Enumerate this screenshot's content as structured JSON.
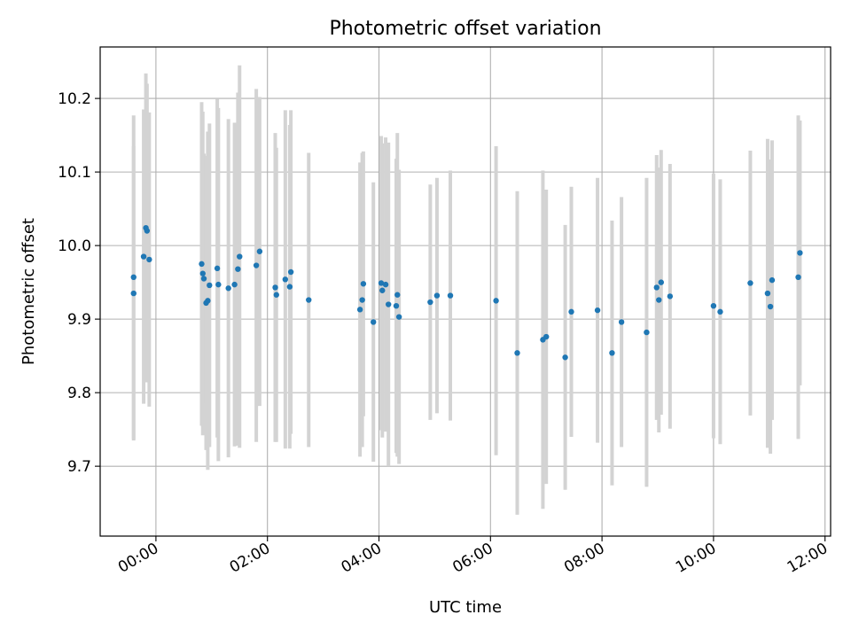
{
  "chart_data": {
    "type": "scatter",
    "title": "Photometric offset variation",
    "xlabel": "UTC time",
    "ylabel": "Photometric offset",
    "x_unit": "hours (UTC)",
    "xlim": [
      -1.0,
      12.1
    ],
    "ylim": [
      9.605,
      10.27
    ],
    "x_ticks": [
      {
        "value": 0,
        "label": "00:00"
      },
      {
        "value": 2,
        "label": "02:00"
      },
      {
        "value": 4,
        "label": "04:00"
      },
      {
        "value": 6,
        "label": "06:00"
      },
      {
        "value": 8,
        "label": "08:00"
      },
      {
        "value": 10,
        "label": "10:00"
      },
      {
        "value": 12,
        "label": "12:00"
      }
    ],
    "y_ticks": [
      {
        "value": 9.7,
        "label": "9.7"
      },
      {
        "value": 9.8,
        "label": "9.8"
      },
      {
        "value": 9.9,
        "label": "9.9"
      },
      {
        "value": 10.0,
        "label": "10.0"
      },
      {
        "value": 10.1,
        "label": "10.1"
      },
      {
        "value": 10.2,
        "label": "10.2"
      }
    ],
    "grid": true,
    "colors": {
      "points": "#1f77b4",
      "errorbars": "#d3d3d3",
      "grid": "#b0b0b0"
    },
    "series": [
      {
        "x": [
          -0.4,
          -0.4,
          -0.22,
          -0.18,
          -0.16,
          -0.12,
          0.82,
          0.84,
          0.86,
          0.9,
          0.93,
          0.96,
          1.1,
          1.12,
          1.3,
          1.41,
          1.47,
          1.5,
          1.8,
          1.86,
          2.14,
          2.16,
          2.32,
          2.4,
          2.42,
          2.74,
          3.66,
          3.7,
          3.72,
          3.9,
          4.04,
          4.06,
          4.12,
          4.17,
          4.31,
          4.33,
          4.36,
          4.92,
          5.04,
          5.28,
          6.1,
          6.48,
          6.94,
          7.0,
          7.34,
          7.45,
          7.92,
          8.18,
          8.35,
          8.8,
          8.98,
          9.02,
          9.06,
          9.22,
          10.0,
          10.12,
          10.66,
          10.97,
          11.02,
          11.05,
          11.52,
          11.55
        ],
        "y": [
          9.957,
          9.935,
          9.985,
          10.024,
          10.02,
          9.981,
          9.975,
          9.962,
          9.955,
          9.922,
          9.925,
          9.946,
          9.969,
          9.947,
          9.942,
          9.947,
          9.968,
          9.985,
          9.973,
          9.992,
          9.943,
          9.933,
          9.954,
          9.944,
          9.964,
          9.926,
          9.913,
          9.926,
          9.948,
          9.896,
          9.949,
          9.939,
          9.947,
          9.92,
          9.918,
          9.933,
          9.903,
          9.923,
          9.932,
          9.932,
          9.925,
          9.854,
          9.872,
          9.876,
          9.848,
          9.91,
          9.912,
          9.854,
          9.896,
          9.882,
          9.943,
          9.926,
          9.95,
          9.931,
          9.918,
          9.91,
          9.949,
          9.935,
          9.917,
          9.953,
          9.957,
          9.99
        ],
        "err": [
          0.22,
          0.2,
          0.2,
          0.21,
          0.2,
          0.2,
          0.22,
          0.22,
          0.17,
          0.2,
          0.23,
          0.22,
          0.23,
          0.24,
          0.23,
          0.22,
          0.24,
          0.26,
          0.24,
          0.21,
          0.21,
          0.2,
          0.23,
          0.22,
          0.22,
          0.2,
          0.2,
          0.2,
          0.18,
          0.19,
          0.2,
          0.2,
          0.2,
          0.22,
          0.2,
          0.22,
          0.2,
          0.16,
          0.16,
          0.17,
          0.21,
          0.22,
          0.23,
          0.2,
          0.18,
          0.17,
          0.18,
          0.18,
          0.17,
          0.21,
          0.18,
          0.18,
          0.18,
          0.18,
          0.18,
          0.18,
          0.18,
          0.21,
          0.2,
          0.19,
          0.22,
          0.18
        ]
      }
    ]
  }
}
